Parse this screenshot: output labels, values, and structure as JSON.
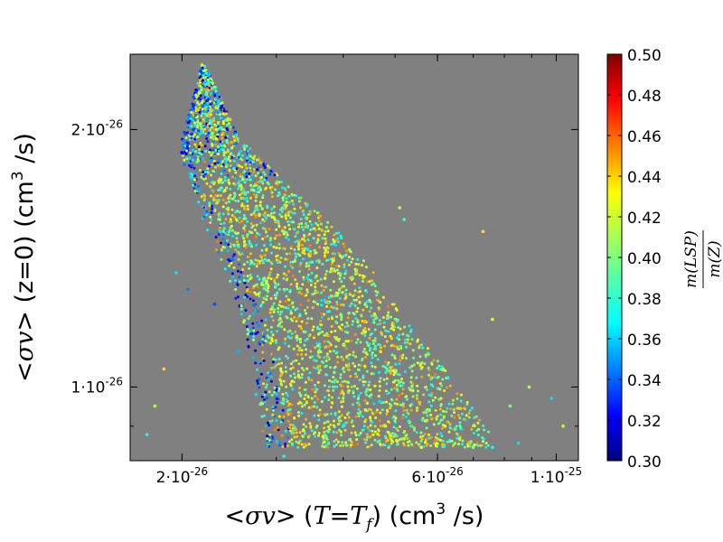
{
  "chart_data": {
    "type": "scatter",
    "title": "",
    "xlabel": "<σv> (T=T_f) (cm^3 /s)",
    "ylabel": "<σv> (z=0) (cm^3 /s)",
    "x_scale": "log",
    "y_scale": "log",
    "xlim": [
      1.6e-26,
      1.1e-25
    ],
    "ylim": [
      8.2e-27,
      2.45e-26
    ],
    "grid": false,
    "x_ticks": [
      {
        "value": 2e-26,
        "label": "2·10^-26"
      },
      {
        "value": 6e-26,
        "label": "6·10^-26"
      },
      {
        "value": 1e-25,
        "label": "1·10^-25"
      }
    ],
    "y_ticks": [
      {
        "value": 2e-26,
        "label": "2·10^-26"
      },
      {
        "value": 1e-26,
        "label": "1·10^-26"
      }
    ],
    "colorbar": {
      "label": "m(LSP) / m(Z)",
      "label_numerator": "m(LSP)",
      "label_denominator": "m(Z)",
      "min": 0.3,
      "max": 0.5,
      "ticks": [
        "0.30",
        "0.32",
        "0.34",
        "0.36",
        "0.38",
        "0.40",
        "0.42",
        "0.44",
        "0.46",
        "0.48",
        "0.50"
      ],
      "colormap": "jet"
    },
    "background_color": "#808080",
    "points": [
      [
        2.18e-26,
        2.38e-26,
        0.42
      ],
      [
        2.2e-26,
        2.3e-26,
        0.41
      ],
      [
        2.16e-26,
        2.25e-26,
        0.43
      ],
      [
        2.22e-26,
        2.2e-26,
        0.39
      ],
      [
        2.14e-26,
        2.15e-26,
        0.41
      ],
      [
        2.24e-26,
        2.12e-26,
        0.36
      ],
      [
        2.12e-26,
        2.08e-26,
        0.35
      ],
      [
        2.26e-26,
        2.05e-26,
        0.38
      ],
      [
        2.1e-26,
        2e-26,
        0.34
      ],
      [
        2.28e-26,
        1.98e-26,
        0.4
      ],
      [
        2.05e-26,
        1.93e-26,
        0.33
      ],
      [
        2.32e-26,
        1.95e-26,
        0.42
      ],
      [
        2e-26,
        1.88e-26,
        0.32
      ],
      [
        2.4e-26,
        1.88e-26,
        0.41
      ],
      [
        2.02e-26,
        1.82e-26,
        0.35
      ],
      [
        2.5e-26,
        1.8e-26,
        0.39
      ],
      [
        2.08e-26,
        1.76e-26,
        0.37
      ],
      [
        2.6e-26,
        1.75e-26,
        0.43
      ],
      [
        2.15e-26,
        1.7e-26,
        0.36
      ],
      [
        2.7e-26,
        1.7e-26,
        0.4
      ],
      [
        2.25e-26,
        1.64e-26,
        0.38
      ],
      [
        2.8e-26,
        1.63e-26,
        0.41
      ],
      [
        2.35e-26,
        1.58e-26,
        0.37
      ],
      [
        2.95e-26,
        1.58e-26,
        0.42
      ],
      [
        2.45e-26,
        1.52e-26,
        0.39
      ],
      [
        3.1e-26,
        1.52e-26,
        0.4
      ],
      [
        2.55e-26,
        1.46e-26,
        0.38
      ],
      [
        3.3e-26,
        1.46e-26,
        0.43
      ],
      [
        2.7e-26,
        1.4e-26,
        0.41
      ],
      [
        3.5e-26,
        1.4e-26,
        0.39
      ],
      [
        2.85e-26,
        1.34e-26,
        0.4
      ],
      [
        3.7e-26,
        1.34e-26,
        0.42
      ],
      [
        3e-26,
        1.28e-26,
        0.38
      ],
      [
        3.9e-26,
        1.28e-26,
        0.41
      ],
      [
        3.2e-26,
        1.22e-26,
        0.43
      ],
      [
        4.1e-26,
        1.22e-26,
        0.4
      ],
      [
        3.4e-26,
        1.16e-26,
        0.39
      ],
      [
        4.4e-26,
        1.16e-26,
        0.42
      ],
      [
        3.6e-26,
        1.1e-26,
        0.41
      ],
      [
        4.7e-26,
        1.1e-26,
        0.43
      ],
      [
        3.85e-26,
        1.04e-26,
        0.4
      ],
      [
        5e-26,
        1.04e-26,
        0.42
      ],
      [
        4.1e-26,
        9.9e-27,
        0.43
      ],
      [
        5.4e-26,
        9.9e-27,
        0.41
      ],
      [
        4.4e-26,
        9.4e-27,
        0.42
      ],
      [
        5.8e-26,
        9.4e-27,
        0.4
      ],
      [
        4.8e-26,
        9e-27,
        0.43
      ],
      [
        6.2e-26,
        9e-27,
        0.42
      ],
      [
        5.2e-26,
        8.7e-27,
        0.41
      ],
      [
        6.6e-26,
        8.7e-27,
        0.43
      ],
      [
        5.6e-26,
        8.5e-27,
        0.42
      ],
      [
        7e-26,
        8.5e-27,
        0.4
      ],
      [
        7.6e-26,
        8.5e-27,
        0.38
      ],
      [
        8.5e-26,
        8.6e-27,
        0.37
      ],
      [
        1.95e-26,
        1.36e-26,
        0.37
      ],
      [
        2.05e-26,
        1.3e-26,
        0.35
      ],
      [
        2.3e-26,
        1.25e-26,
        0.34
      ],
      [
        2.55e-26,
        1.1e-26,
        0.36
      ],
      [
        2.75e-26,
        9.8e-27,
        0.37
      ],
      [
        2.9e-26,
        8.6e-27,
        0.36
      ],
      [
        3.1e-26,
        8.3e-27,
        0.38
      ],
      [
        1.85e-26,
        1.05e-26,
        0.43
      ],
      [
        1.78e-26,
        9.5e-27,
        0.41
      ],
      [
        1.72e-26,
        8.8e-27,
        0.38
      ],
      [
        7.3e-26,
        1.52e-26,
        0.43
      ],
      [
        7.6e-26,
        1.2e-26,
        0.42
      ],
      [
        5.1e-26,
        1.62e-26,
        0.41
      ],
      [
        5.2e-26,
        1.57e-26,
        0.39
      ],
      [
        8.9e-26,
        1e-26,
        0.41
      ],
      [
        9.8e-26,
        9.7e-27,
        0.37
      ],
      [
        1.03e-25,
        9e-27,
        0.41
      ],
      [
        8.2e-26,
        9.5e-27,
        0.4
      ]
    ]
  }
}
